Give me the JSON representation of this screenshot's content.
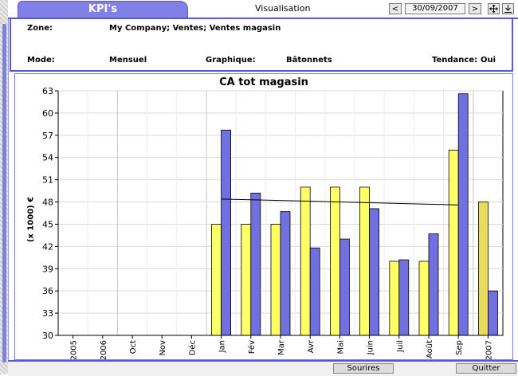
{
  "header": {
    "kpi_tab": "KPI's",
    "view_label": "Visualisation",
    "prev_button": "<",
    "date": "30/09/2007",
    "next_button": ">",
    "move_icon": "move-arrows-icon",
    "download_icon": "download-arrow-icon"
  },
  "info": {
    "zone_label": "Zone:",
    "zone_value": "My Company; Ventes; Ventes magasin",
    "mode_label": "Mode:",
    "mode_value": "Mensuel",
    "graph_label": "Graphique:",
    "graph_value": "Bâtonnets",
    "trend_label": "Tendance:",
    "trend_value": "Oui"
  },
  "chart_data": {
    "type": "bar",
    "title": "CA tot magasin",
    "ylabel": "(x 1000) €",
    "xlabel": "",
    "ylim": [
      30,
      63
    ],
    "yticks": [
      30,
      33,
      36,
      39,
      42,
      45,
      48,
      51,
      54,
      57,
      60,
      63
    ],
    "categories": [
      "2005",
      "2006",
      "Oct",
      "Nov",
      "Déc",
      "Jan",
      "Fév",
      "Mar",
      "Avr",
      "Mai",
      "Juin",
      "Juil",
      "Août",
      "Sep",
      "2007"
    ],
    "series": [
      {
        "values": [
          null,
          null,
          null,
          null,
          null,
          45,
          45,
          45,
          50,
          50,
          50,
          40,
          40,
          55,
          48
        ],
        "color": "#ffff66"
      },
      {
        "values": [
          null,
          null,
          null,
          null,
          null,
          57.7,
          49.2,
          46.7,
          41.8,
          43,
          47.1,
          40.2,
          43.7,
          62.6,
          36
        ],
        "color": "#7070e0"
      }
    ],
    "trend_line": {
      "start": 48.4,
      "end": 47.6
    },
    "grid": true
  },
  "footer": {
    "smiles_button": "Sourires",
    "quit_button": "Quitter"
  }
}
